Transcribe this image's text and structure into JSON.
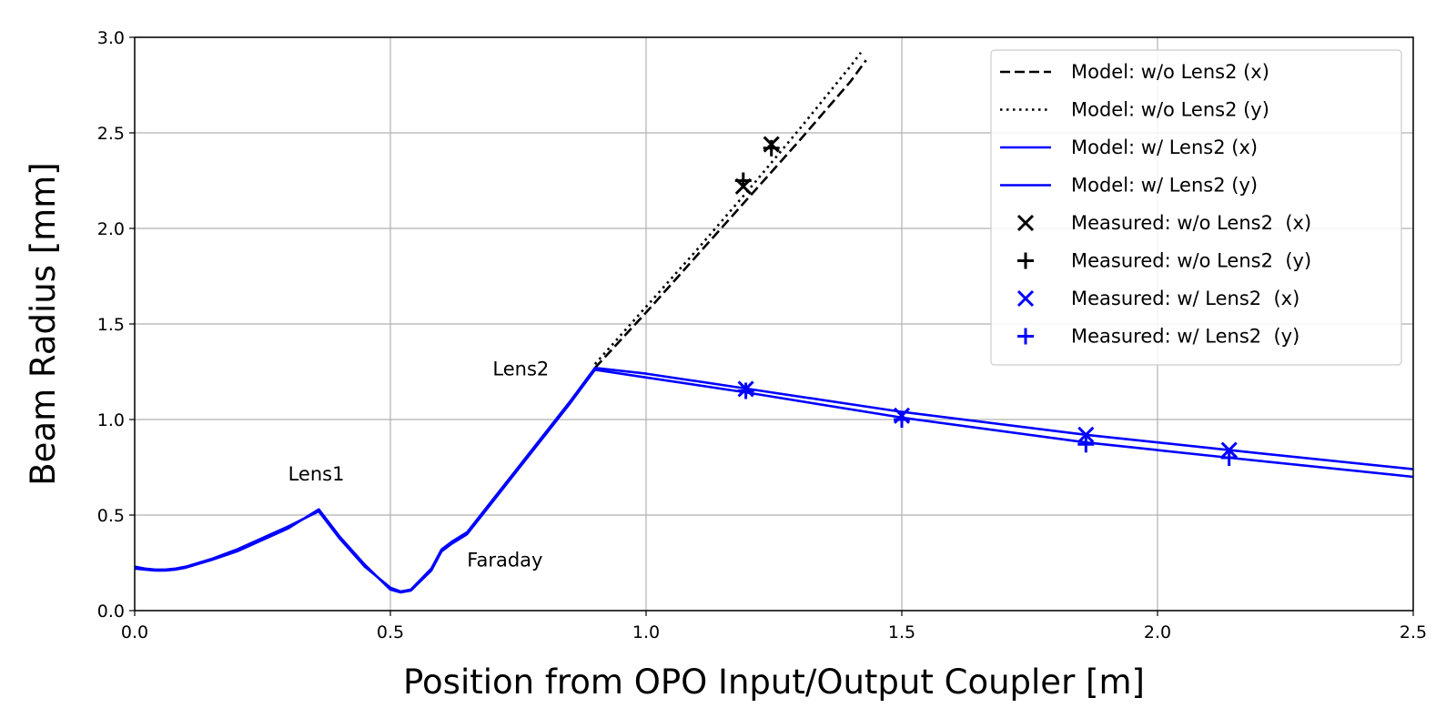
{
  "chart_data": {
    "type": "line",
    "xlabel": "Position from OPO Input/Output Coupler [m]",
    "ylabel": "Beam Radius [mm]",
    "xlim": [
      0.0,
      2.5
    ],
    "ylim": [
      0.0,
      3.0
    ],
    "xticks": [
      "0.0",
      "0.5",
      "1.0",
      "1.5",
      "2.0",
      "2.5"
    ],
    "yticks": [
      "0.0",
      "0.5",
      "1.0",
      "1.5",
      "2.0",
      "2.5",
      "3.0"
    ],
    "grid": true,
    "legend_position": "top-right",
    "annotations": [
      {
        "text": "Lens1",
        "x": 0.3,
        "y": 0.72
      },
      {
        "text": "Lens2",
        "x": 0.7,
        "y": 1.27
      },
      {
        "text": "Faraday",
        "x": 0.65,
        "y": 0.27
      }
    ],
    "series": [
      {
        "name": "Model: w/o Lens2 (x)",
        "style": "dashed",
        "color": "#000000",
        "x": [
          0.9,
          1.0,
          1.1,
          1.2,
          1.3,
          1.4,
          1.43
        ],
        "y": [
          1.27,
          1.56,
          1.86,
          2.16,
          2.46,
          2.77,
          2.88
        ]
      },
      {
        "name": "Model: w/o Lens2 (y)",
        "style": "dotted",
        "color": "#000000",
        "x": [
          0.9,
          1.0,
          1.1,
          1.2,
          1.3,
          1.4,
          1.42
        ],
        "y": [
          1.29,
          1.59,
          1.89,
          2.2,
          2.52,
          2.85,
          2.92
        ]
      },
      {
        "name": "Model: w/ Lens2 (x)",
        "style": "solid",
        "color": "#0000ff",
        "x": [
          0.0,
          0.02,
          0.04,
          0.06,
          0.08,
          0.1,
          0.15,
          0.2,
          0.25,
          0.3,
          0.36,
          0.4,
          0.45,
          0.5,
          0.52,
          0.54,
          0.58,
          0.6,
          0.62,
          0.65,
          0.7,
          0.75,
          0.8,
          0.85,
          0.9,
          1.0,
          1.2,
          1.5,
          1.86,
          2.14,
          2.5
        ],
        "y": [
          0.23,
          0.22,
          0.215,
          0.215,
          0.22,
          0.23,
          0.27,
          0.32,
          0.38,
          0.44,
          0.52,
          0.38,
          0.23,
          0.12,
          0.1,
          0.11,
          0.22,
          0.32,
          0.36,
          0.41,
          0.58,
          0.75,
          0.92,
          1.09,
          1.27,
          1.24,
          1.16,
          1.04,
          0.92,
          0.84,
          0.74
        ]
      },
      {
        "name": "Model: w/ Lens2 (y)",
        "style": "solid",
        "color": "#0000ff",
        "x": [
          0.0,
          0.02,
          0.04,
          0.06,
          0.08,
          0.1,
          0.15,
          0.2,
          0.25,
          0.3,
          0.36,
          0.4,
          0.45,
          0.5,
          0.52,
          0.54,
          0.58,
          0.6,
          0.62,
          0.65,
          0.7,
          0.75,
          0.8,
          0.85,
          0.9,
          1.0,
          1.2,
          1.5,
          1.86,
          2.14,
          2.5
        ],
        "y": [
          0.22,
          0.215,
          0.21,
          0.21,
          0.215,
          0.225,
          0.265,
          0.31,
          0.37,
          0.43,
          0.53,
          0.39,
          0.24,
          0.11,
          0.095,
          0.105,
          0.21,
          0.31,
          0.35,
          0.4,
          0.57,
          0.74,
          0.91,
          1.08,
          1.26,
          1.22,
          1.14,
          1.01,
          0.88,
          0.8,
          0.7
        ]
      },
      {
        "name": "Measured: w/o Lens2  (x)",
        "marker": "x",
        "color": "#000000",
        "x": [
          1.19,
          1.245
        ],
        "y": [
          2.22,
          2.44
        ]
      },
      {
        "name": "Measured: w/o Lens2  (y)",
        "marker": "+",
        "color": "#000000",
        "x": [
          1.19,
          1.245
        ],
        "y": [
          2.25,
          2.42
        ]
      },
      {
        "name": "Measured: w/ Lens2  (x)",
        "marker": "x",
        "color": "#0000ff",
        "x": [
          1.195,
          1.5,
          1.86,
          2.14
        ],
        "y": [
          1.16,
          1.02,
          0.92,
          0.84
        ]
      },
      {
        "name": "Measured: w/ Lens2  (y)",
        "marker": "+",
        "color": "#0000ff",
        "x": [
          1.195,
          1.5,
          1.86,
          2.14
        ],
        "y": [
          1.15,
          1.0,
          0.87,
          0.8
        ]
      }
    ]
  }
}
